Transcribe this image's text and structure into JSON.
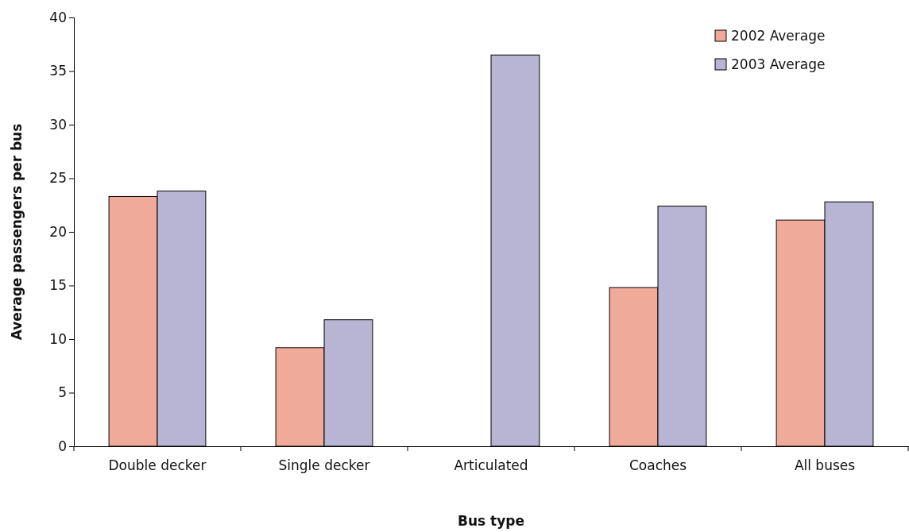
{
  "chart_data": {
    "type": "bar",
    "xlabel": "Bus type",
    "ylabel": "Average passengers per bus",
    "categories": [
      "Double decker",
      "Single decker",
      "Articulated",
      "Coaches",
      "All buses"
    ],
    "series": [
      {
        "name": "2002 Average",
        "color": "#f0aa9a",
        "values": [
          23.3,
          9.2,
          null,
          14.8,
          21.1
        ]
      },
      {
        "name": "2003 Average",
        "color": "#b8b4d4",
        "values": [
          23.8,
          11.8,
          36.5,
          22.4,
          22.8
        ]
      }
    ],
    "ylim": [
      0,
      40
    ],
    "yticks": [
      0,
      5,
      10,
      15,
      20,
      25,
      30,
      35,
      40
    ],
    "grid": false,
    "legend": "top right"
  }
}
